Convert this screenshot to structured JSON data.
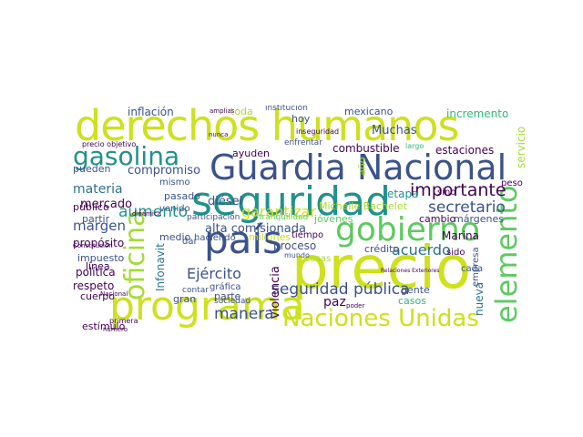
{
  "wordcloud": {
    "palette": [
      "#cde11d",
      "#5ec962",
      "#21918c",
      "#3b528b",
      "#440154",
      "#35b779",
      "#2c728e",
      "#a5db36"
    ],
    "words": [
      {
        "text": "derechos humanos",
        "color": "#cde11d"
      },
      {
        "text": "Guardia Nacional",
        "color": "#3b528b"
      },
      {
        "text": "precio",
        "color": "#cde11d"
      },
      {
        "text": "seguridad",
        "color": "#21918c"
      },
      {
        "text": "programa",
        "color": "#cde11d"
      },
      {
        "text": "país",
        "color": "#3b528b"
      },
      {
        "text": "gasolina",
        "color": "#21918c"
      },
      {
        "text": "gobierno",
        "color": "#5ec962"
      },
      {
        "text": "Naciones Unidas",
        "color": "#cde11d"
      },
      {
        "text": "oficina",
        "color": "#a5db36"
      },
      {
        "text": "elemento",
        "color": "#5ec962"
      },
      {
        "text": "seguridad pública",
        "color": "#3b528b"
      },
      {
        "text": "aumento",
        "color": "#21918c"
      },
      {
        "text": "importante",
        "color": "#440154"
      },
      {
        "text": "secretario",
        "color": "#3b528b"
      },
      {
        "text": "acuerdo",
        "color": "#2c728e"
      },
      {
        "text": "garantizar",
        "color": "#cde11d"
      },
      {
        "text": "compromiso",
        "color": "#3b528b"
      },
      {
        "text": "materia",
        "color": "#2c728e"
      },
      {
        "text": "mercado",
        "color": "#440154"
      },
      {
        "text": "margen",
        "color": "#3b528b"
      },
      {
        "text": "alta comisionada",
        "color": "#3b528b"
      },
      {
        "text": "Ejército",
        "color": "#3b528b"
      },
      {
        "text": "manera",
        "color": "#3b528b"
      },
      {
        "text": "inflación",
        "color": "#3b528b"
      },
      {
        "text": "diésel",
        "color": "#3b528b"
      },
      {
        "text": "mexicano",
        "color": "#3b528b"
      },
      {
        "text": "Muchas",
        "color": "#3b528b"
      },
      {
        "text": "incremento",
        "color": "#35b779"
      },
      {
        "text": "combustible",
        "color": "#440154"
      },
      {
        "text": "estaciones",
        "color": "#440154"
      },
      {
        "text": "Michelle Bachelet",
        "color": "#a5db36"
      },
      {
        "text": "etapa",
        "color": "#21918c"
      },
      {
        "text": "Marina",
        "color": "#440154"
      },
      {
        "text": "público",
        "color": "#440154"
      },
      {
        "text": "partir",
        "color": "#3b528b"
      },
      {
        "text": "propósito",
        "color": "#440154"
      },
      {
        "text": "impuesto",
        "color": "#3b528b"
      },
      {
        "text": "política",
        "color": "#440154"
      },
      {
        "text": "respeto",
        "color": "#440154"
      },
      {
        "text": "violencia",
        "color": "#440154"
      },
      {
        "text": "proceso",
        "color": "#3b528b"
      },
      {
        "text": "crédito",
        "color": "#3b528b"
      },
      {
        "text": "jóvenes",
        "color": "#5ec962"
      },
      {
        "text": "cambio",
        "color": "#440154"
      },
      {
        "text": "márgenes",
        "color": "#3b528b"
      },
      {
        "text": "paz",
        "color": "#440154"
      },
      {
        "text": "gente",
        "color": "#3b528b"
      },
      {
        "text": "casos",
        "color": "#35b779"
      },
      {
        "text": "cada",
        "color": "#3b528b"
      },
      {
        "text": "nueva",
        "color": "#2c728e"
      },
      {
        "text": "empresa",
        "color": "#3b528b"
      },
      {
        "text": "servicio",
        "color": "#a5db36"
      },
      {
        "text": "Infonavit",
        "color": "#2c728e"
      },
      {
        "text": "pasado",
        "color": "#3b528b"
      },
      {
        "text": "medio",
        "color": "#3b528b"
      },
      {
        "text": "hoy",
        "color": "#3b528b"
      },
      {
        "text": "toda",
        "color": "#a5db36"
      },
      {
        "text": "institución",
        "color": "#3b528b"
      },
      {
        "text": "pueden",
        "color": "#3b528b"
      },
      {
        "text": "línea",
        "color": "#440154"
      },
      {
        "text": "cuerpo",
        "color": "#440154"
      },
      {
        "text": "estímulo",
        "color": "#440154"
      },
      {
        "text": "gráfica",
        "color": "#3b528b"
      },
      {
        "text": "gran",
        "color": "#3b528b"
      },
      {
        "text": "parte",
        "color": "#3b528b"
      },
      {
        "text": "sido",
        "color": "#440154"
      },
      {
        "text": "sino",
        "color": "#440154"
      },
      {
        "text": "peso",
        "color": "#440154"
      },
      {
        "text": "tiempo",
        "color": "#440154"
      },
      {
        "text": "millones",
        "color": "#cde11d"
      },
      {
        "text": "dar",
        "color": "#3b528b"
      },
      {
        "text": "haciendo",
        "color": "#3b528b"
      },
      {
        "text": "venido",
        "color": "#3b528b"
      },
      {
        "text": "mismo",
        "color": "#3b528b"
      },
      {
        "text": "ayuden",
        "color": "#440154"
      },
      {
        "text": "participación",
        "color": "#3b528b"
      },
      {
        "text": "tranquilidad",
        "color": "#5ec962"
      },
      {
        "text": "Constitución",
        "color": "#440154"
      },
      {
        "text": "precio objetivo",
        "color": "#440154"
      },
      {
        "text": "cosas",
        "color": "#a5db36"
      },
      {
        "text": "mundo",
        "color": "#3b528b"
      },
      {
        "text": "año",
        "color": "#a5db36"
      },
      {
        "text": "contar",
        "color": "#3b528b"
      },
      {
        "text": "sociedad",
        "color": "#3b528b"
      },
      {
        "text": "enfrentar",
        "color": "#3b528b"
      },
      {
        "text": "inseguridad",
        "color": "#440154"
      },
      {
        "text": "primera",
        "color": "#440154"
      },
      {
        "text": "número",
        "color": "#440154"
      },
      {
        "text": "Relaciones Exteriores",
        "color": "#440154"
      },
      {
        "text": "Nacional",
        "color": "#440154"
      },
      {
        "text": "poder",
        "color": "#440154"
      },
      {
        "text": "largo",
        "color": "#35b779"
      },
      {
        "text": "nunca",
        "color": "#440154"
      },
      {
        "text": "dinámica",
        "color": "#440154"
      },
      {
        "text": "amplias",
        "color": "#440154"
      }
    ]
  }
}
